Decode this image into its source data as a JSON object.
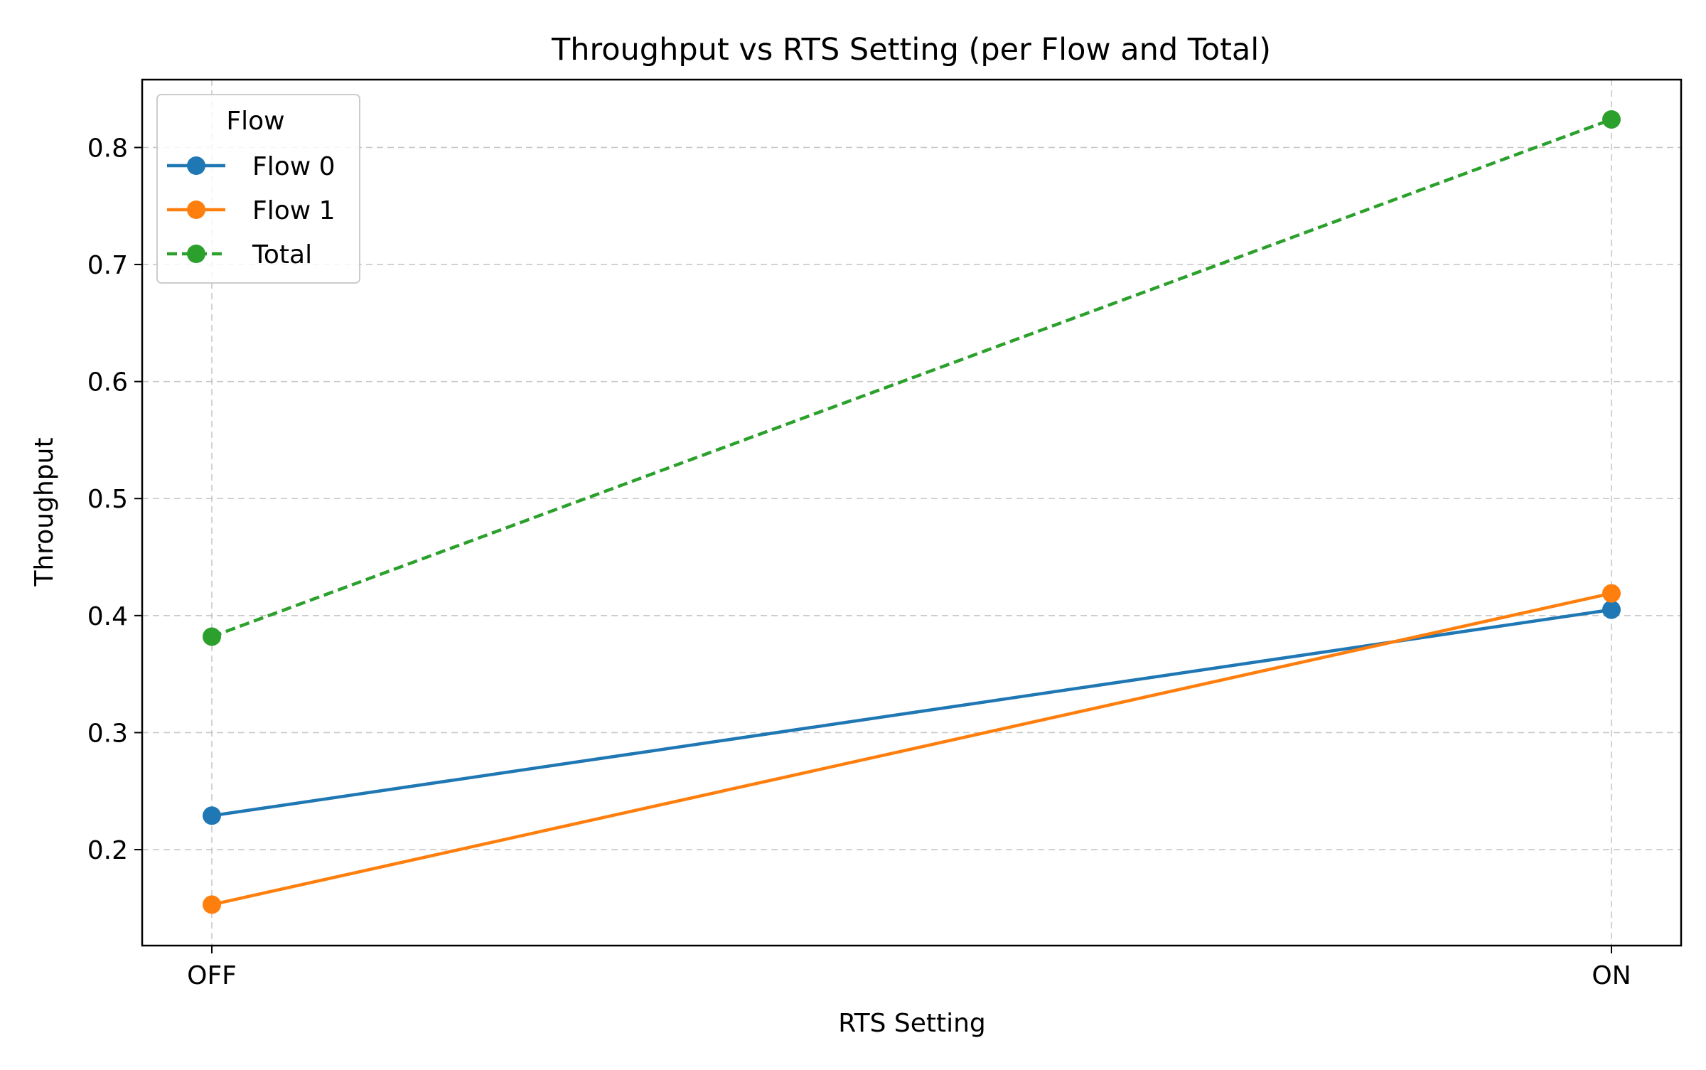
{
  "chart_data": {
    "type": "line",
    "title": "Throughput vs RTS Setting (per Flow and Total)",
    "xlabel": "RTS Setting",
    "ylabel": "Throughput",
    "categories": [
      "OFF",
      "ON"
    ],
    "ylim": [
      0.118,
      0.858
    ],
    "yticks": [
      0.2,
      0.3,
      0.4,
      0.5,
      0.6,
      0.7,
      0.8
    ],
    "ytick_labels": [
      "0.2",
      "0.3",
      "0.4",
      "0.5",
      "0.6",
      "0.7",
      "0.8"
    ],
    "grid": true,
    "legend": {
      "title": "Flow",
      "placement": "upper-left"
    },
    "series": [
      {
        "name": "Flow 0",
        "values": [
          0.229,
          0.405
        ],
        "color": "#1f77b4",
        "linestyle": "solid",
        "marker": "circle"
      },
      {
        "name": "Flow 1",
        "values": [
          0.153,
          0.419
        ],
        "color": "#ff7f0e",
        "linestyle": "solid",
        "marker": "circle"
      },
      {
        "name": "Total",
        "values": [
          0.382,
          0.824
        ],
        "color": "#2ca02c",
        "linestyle": "dashed",
        "marker": "circle"
      }
    ]
  }
}
